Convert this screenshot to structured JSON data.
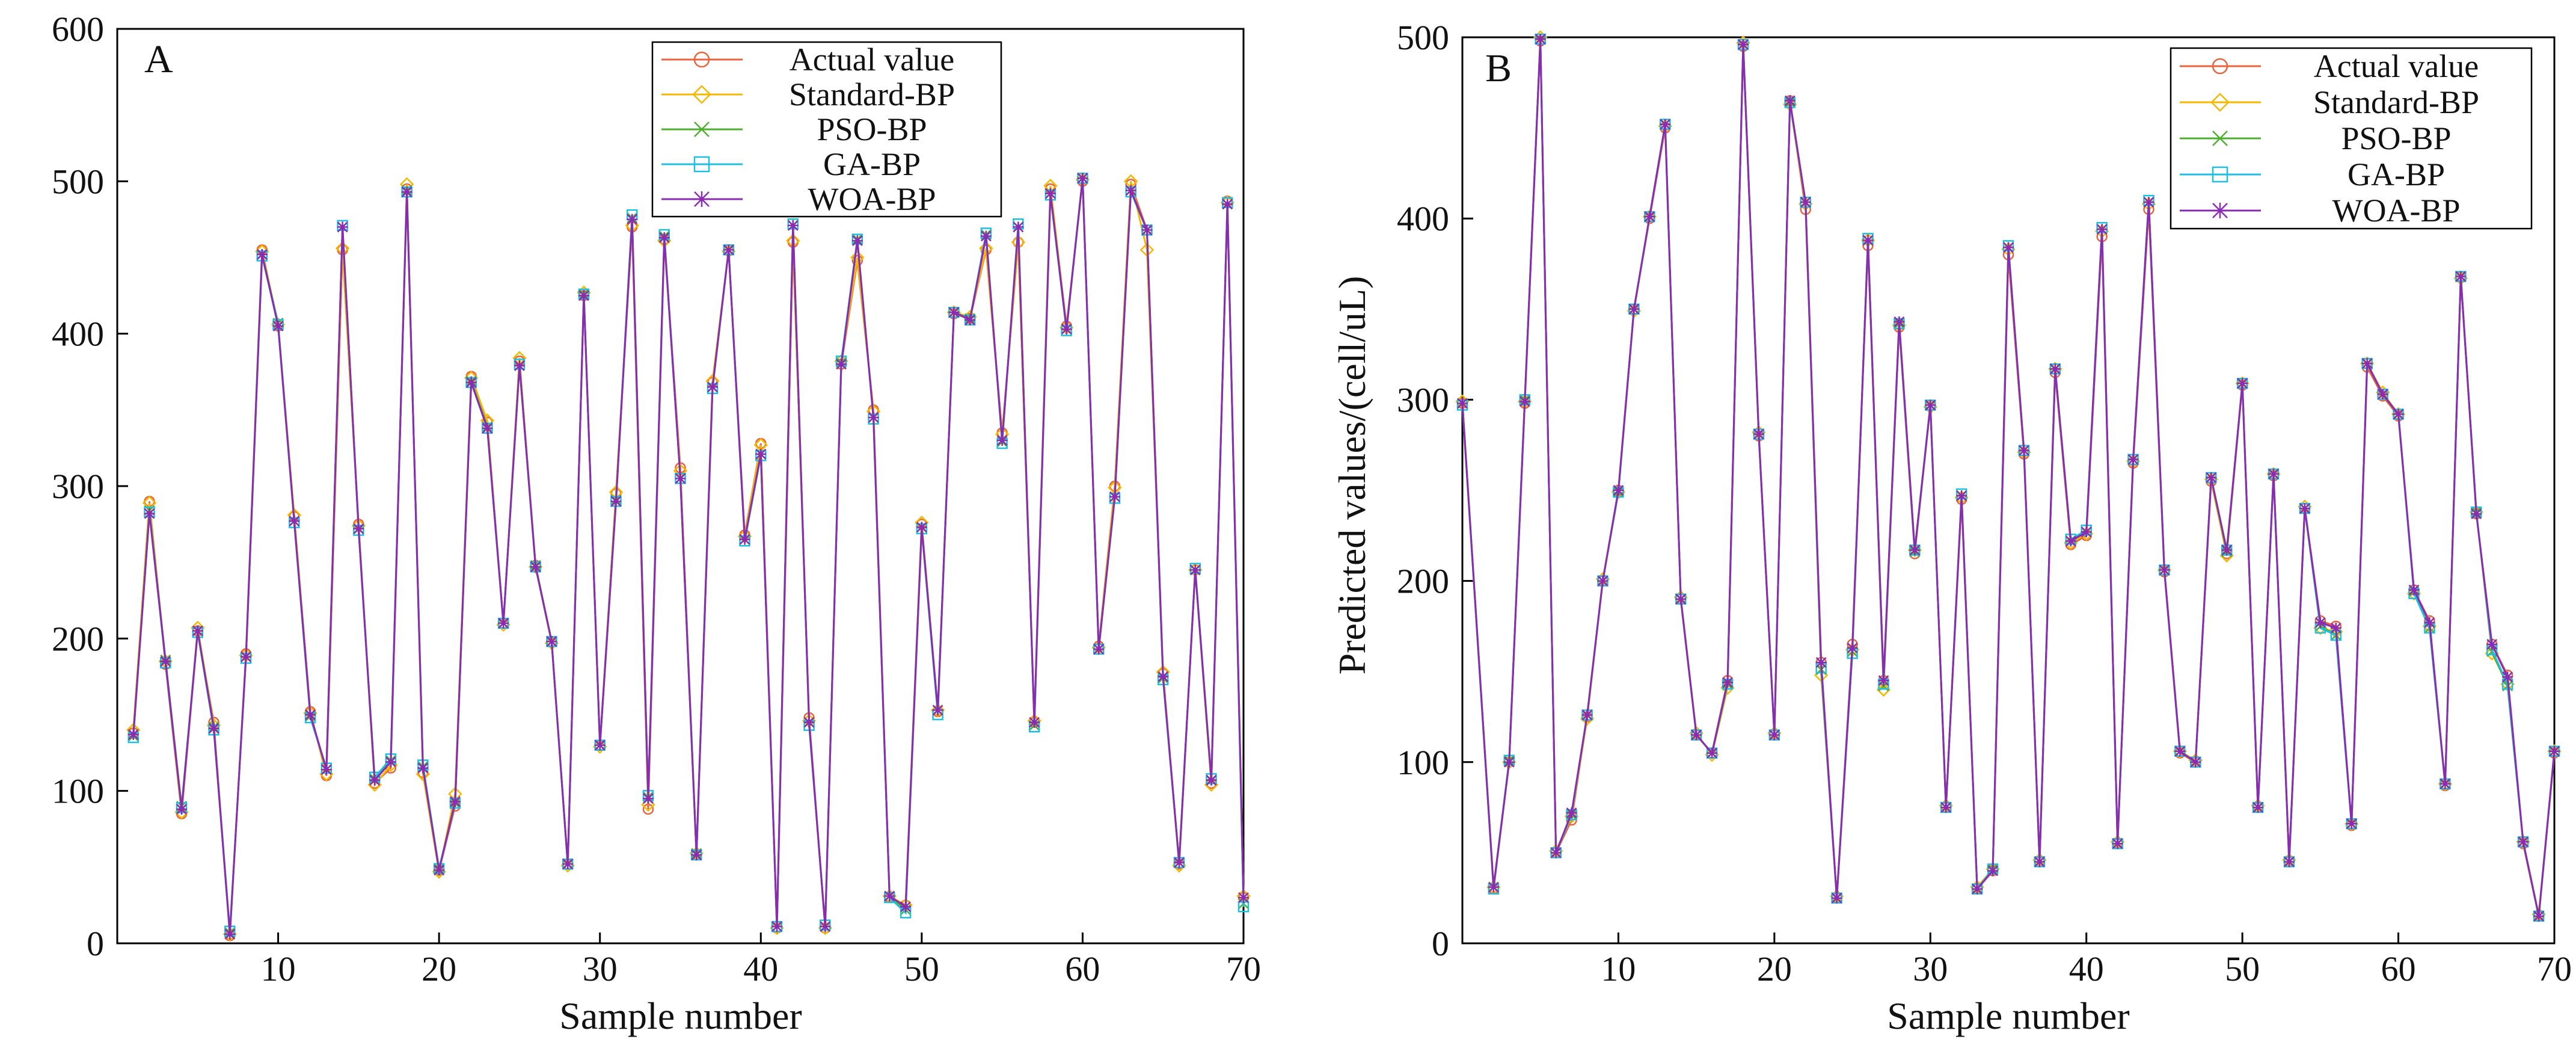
{
  "colors": {
    "actual": "#E8643C",
    "standard": "#F5B800",
    "pso": "#4CAF2E",
    "ga": "#1FBFE0",
    "woa": "#8A2BB2"
  },
  "chart_data": [
    {
      "type": "line",
      "panel_label": "A",
      "xlabel": "Sample number",
      "ylabel": "",
      "xlim": [
        0,
        70
      ],
      "ylim": [
        0,
        600
      ],
      "xticks": [
        "10",
        "20",
        "30",
        "40",
        "50",
        "60",
        "70"
      ],
      "yticks": [
        "0",
        "100",
        "200",
        "300",
        "400",
        "500",
        "600"
      ],
      "legend_position": "top-right",
      "x": [
        1,
        2,
        3,
        4,
        5,
        6,
        7,
        8,
        9,
        10,
        11,
        12,
        13,
        14,
        15,
        16,
        17,
        18,
        19,
        20,
        21,
        22,
        23,
        24,
        25,
        26,
        27,
        28,
        29,
        30,
        31,
        32,
        33,
        34,
        35,
        36,
        37,
        38,
        39,
        40,
        41,
        42,
        43,
        44,
        45,
        46,
        47,
        48,
        49,
        50,
        51,
        52,
        53,
        54,
        55,
        56,
        57,
        58,
        59,
        60,
        61,
        62,
        63,
        64,
        65,
        66,
        67,
        68,
        69,
        70
      ],
      "series": [
        {
          "name": "Actual value",
          "marker": "circle",
          "values": [
            138,
            290,
            183,
            85,
            205,
            145,
            5,
            190,
            455,
            405,
            280,
            152,
            110,
            455,
            275,
            105,
            115,
            495,
            112,
            48,
            90,
            372,
            342,
            210,
            382,
            248,
            198,
            52,
            425,
            130,
            295,
            470,
            88,
            462,
            312,
            58,
            368,
            455,
            268,
            328,
            10,
            460,
            148,
            10,
            380,
            448,
            350,
            30,
            25,
            275,
            152,
            413,
            410,
            455,
            335,
            460,
            145,
            495,
            405,
            500,
            195,
            300,
            498,
            468,
            177,
            52,
            245,
            105,
            487,
            30
          ]
        },
        {
          "name": "Standard-BP",
          "marker": "diamond",
          "values": [
            140,
            289,
            185,
            86,
            207,
            143,
            6,
            189,
            454,
            406,
            281,
            151,
            111,
            456,
            274,
            104,
            117,
            498,
            111,
            47,
            98,
            371,
            343,
            209,
            384,
            247,
            197,
            51,
            427,
            129,
            296,
            471,
            91,
            461,
            310,
            59,
            369,
            454,
            267,
            327,
            10,
            461,
            146,
            10,
            382,
            450,
            349,
            31,
            25,
            276,
            153,
            414,
            411,
            456,
            334,
            460,
            146,
            497,
            404,
            501,
            194,
            299,
            500,
            455,
            178,
            51,
            245,
            104,
            486,
            31
          ]
        },
        {
          "name": "PSO-BP",
          "marker": "x",
          "values": [
            136,
            284,
            186,
            90,
            205,
            142,
            7,
            188,
            452,
            407,
            277,
            149,
            114,
            470,
            272,
            108,
            120,
            494,
            116,
            49,
            92,
            369,
            339,
            210,
            379,
            248,
            198,
            52,
            426,
            130,
            291,
            476,
            96,
            464,
            305,
            59,
            365,
            455,
            265,
            321,
            11,
            471,
            145,
            11,
            381,
            462,
            345,
            31,
            22,
            273,
            153,
            414,
            410,
            465,
            329,
            470,
            143,
            492,
            403,
            502,
            193,
            293,
            494,
            468,
            174,
            53,
            245,
            107,
            485,
            26
          ]
        },
        {
          "name": "GA-BP",
          "marker": "square",
          "values": [
            135,
            283,
            184,
            89,
            204,
            140,
            8,
            187,
            451,
            406,
            276,
            148,
            115,
            471,
            271,
            109,
            121,
            493,
            117,
            49,
            92,
            368,
            338,
            210,
            380,
            247,
            198,
            52,
            426,
            130,
            290,
            478,
            97,
            465,
            305,
            58,
            364,
            455,
            264,
            320,
            11,
            472,
            143,
            12,
            382,
            462,
            344,
            30,
            20,
            272,
            150,
            414,
            409,
            466,
            328,
            472,
            142,
            491,
            402,
            502,
            193,
            292,
            493,
            468,
            173,
            53,
            246,
            108,
            486,
            24
          ]
        },
        {
          "name": "WOA-BP",
          "marker": "star",
          "values": [
            137,
            282,
            185,
            88,
            205,
            141,
            6,
            188,
            452,
            405,
            277,
            150,
            114,
            470,
            272,
            107,
            119,
            493,
            115,
            48,
            93,
            368,
            338,
            210,
            379,
            247,
            198,
            52,
            425,
            130,
            290,
            475,
            95,
            463,
            305,
            58,
            365,
            455,
            265,
            321,
            11,
            471,
            145,
            11,
            380,
            461,
            345,
            31,
            24,
            273,
            153,
            414,
            409,
            464,
            330,
            470,
            145,
            492,
            403,
            502,
            193,
            293,
            494,
            468,
            175,
            53,
            245,
            107,
            485,
            30
          ]
        }
      ]
    },
    {
      "type": "line",
      "panel_label": "B",
      "xlabel": "Sample number",
      "ylabel": "Predicted values/(cell/uL)",
      "xlim": [
        0,
        70
      ],
      "ylim": [
        0,
        500
      ],
      "xticks": [
        "10",
        "20",
        "30",
        "40",
        "50",
        "60",
        "70"
      ],
      "yticks": [
        "0",
        "100",
        "200",
        "300",
        "400",
        "500"
      ],
      "legend_position": "top-right",
      "x": [
        0,
        2,
        3,
        4,
        5,
        6,
        7,
        8,
        9,
        10,
        11,
        12,
        13,
        14,
        15,
        16,
        17,
        18,
        19,
        20,
        21,
        22,
        23,
        24,
        25,
        26,
        27,
        28,
        29,
        30,
        31,
        32,
        33,
        34,
        35,
        36,
        37,
        38,
        39,
        40,
        41,
        42,
        43,
        44,
        45,
        46,
        47,
        48,
        49,
        50,
        51,
        52,
        53,
        54,
        55,
        56,
        57,
        58,
        59,
        60,
        61,
        62,
        63,
        64,
        65,
        66,
        67,
        68,
        69,
        70
      ],
      "series": [
        {
          "name": "Actual value",
          "marker": "circle",
          "values": [
            298,
            30,
            100,
            298,
            498,
            50,
            68,
            125,
            200,
            250,
            350,
            400,
            450,
            190,
            115,
            105,
            145,
            495,
            280,
            115,
            465,
            405,
            155,
            25,
            165,
            385,
            145,
            340,
            215,
            297,
            75,
            245,
            30,
            40,
            380,
            270,
            45,
            315,
            220,
            225,
            390,
            55,
            265,
            405,
            205,
            105,
            100,
            255,
            215,
            308,
            75,
            258,
            45,
            240,
            178,
            175,
            65,
            318,
            302,
            291,
            195,
            178,
            87,
            368,
            237,
            165,
            148,
            55,
            15,
            105
          ]
        },
        {
          "name": "Standard-BP",
          "marker": "diamond",
          "values": [
            299,
            31,
            100,
            299,
            500,
            51,
            70,
            124,
            201,
            249,
            349,
            401,
            451,
            191,
            116,
            104,
            141,
            497,
            282,
            116,
            463,
            408,
            148,
            26,
            162,
            388,
            140,
            341,
            217,
            296,
            76,
            246,
            31,
            41,
            383,
            271,
            46,
            317,
            221,
            226,
            393,
            56,
            266,
            408,
            206,
            106,
            101,
            256,
            214,
            309,
            76,
            259,
            46,
            241,
            174,
            172,
            66,
            320,
            304,
            292,
            193,
            175,
            88,
            367,
            238,
            160,
            143,
            56,
            16,
            106
          ]
        },
        {
          "name": "PSO-BP",
          "marker": "x",
          "values": [
            298,
            31,
            101,
            300,
            499,
            50,
            71,
            126,
            200,
            249,
            350,
            401,
            452,
            190,
            115,
            105,
            143,
            496,
            281,
            115,
            464,
            409,
            151,
            25,
            161,
            388,
            142,
            342,
            216,
            297,
            75,
            247,
            30,
            41,
            384,
            272,
            45,
            317,
            222,
            227,
            394,
            55,
            267,
            409,
            206,
            106,
            100,
            257,
            216,
            309,
            75,
            259,
            45,
            240,
            175,
            170,
            66,
            320,
            303,
            292,
            194,
            174,
            88,
            368,
            238,
            161,
            142,
            56,
            15,
            106
          ]
        },
        {
          "name": "GA-BP",
          "marker": "square",
          "values": [
            297,
            30,
            101,
            300,
            499,
            50,
            71,
            126,
            200,
            249,
            350,
            401,
            452,
            190,
            115,
            105,
            143,
            496,
            281,
            115,
            464,
            409,
            152,
            25,
            160,
            389,
            143,
            342,
            217,
            297,
            75,
            248,
            30,
            41,
            385,
            272,
            45,
            317,
            223,
            228,
            395,
            55,
            267,
            410,
            206,
            106,
            100,
            257,
            217,
            309,
            75,
            259,
            45,
            240,
            174,
            170,
            66,
            320,
            303,
            292,
            193,
            174,
            88,
            368,
            238,
            162,
            143,
            56,
            15,
            106
          ]
        },
        {
          "name": "WOA-BP",
          "marker": "star",
          "values": [
            298,
            31,
            100,
            299,
            499,
            50,
            72,
            126,
            200,
            250,
            350,
            401,
            452,
            190,
            115,
            105,
            144,
            496,
            281,
            115,
            465,
            409,
            155,
            25,
            163,
            388,
            145,
            343,
            217,
            297,
            75,
            247,
            30,
            40,
            384,
            272,
            45,
            317,
            222,
            227,
            394,
            55,
            267,
            409,
            206,
            106,
            100,
            257,
            217,
            309,
            75,
            259,
            45,
            240,
            177,
            174,
            66,
            320,
            303,
            292,
            195,
            177,
            88,
            368,
            237,
            165,
            147,
            56,
            15,
            106
          ]
        }
      ]
    }
  ]
}
